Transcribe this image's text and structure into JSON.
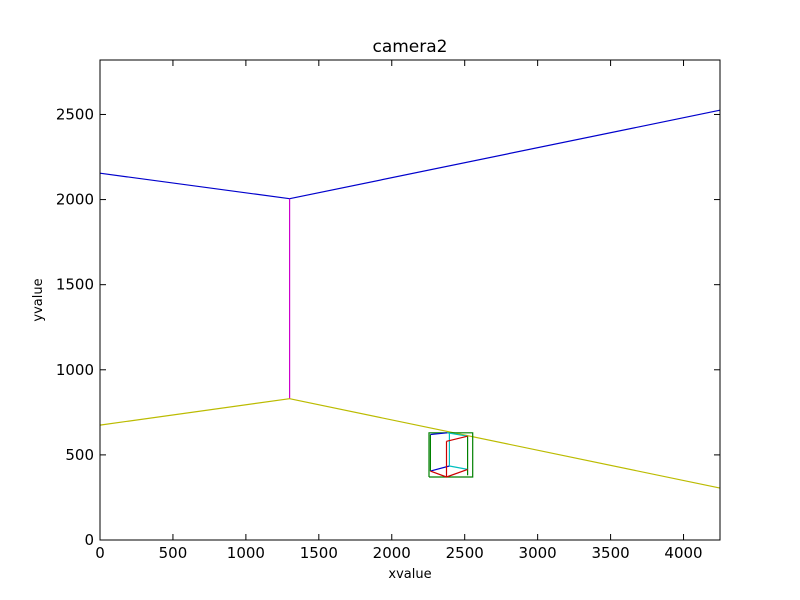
{
  "chart_data": {
    "type": "line",
    "title": "camera2",
    "xlabel": "xvalue",
    "ylabel": "yvalue",
    "xlim": [
      0,
      4250
    ],
    "ylim": [
      0,
      2820
    ],
    "xticks": [
      0,
      500,
      1000,
      1500,
      2000,
      2500,
      3000,
      3500,
      4000
    ],
    "yticks": [
      0,
      500,
      1000,
      1500,
      2000,
      2500
    ],
    "grid": false,
    "series": [
      {
        "color": "#0000cc",
        "x": [
          0,
          1300
        ],
        "y": [
          2155,
          2005
        ]
      },
      {
        "color": "#0000cc",
        "x": [
          1300,
          4250
        ],
        "y": [
          2005,
          2525
        ]
      },
      {
        "color": "#cc00cc",
        "x": [
          1300,
          1300
        ],
        "y": [
          2005,
          830
        ]
      },
      {
        "color": "#bbbb00",
        "x": [
          0,
          1300
        ],
        "y": [
          675,
          830
        ]
      },
      {
        "color": "#bbbb00",
        "x": [
          1300,
          4250
        ],
        "y": [
          830,
          305
        ]
      },
      {
        "color": "#008000",
        "x": [
          2255,
          2555,
          2555,
          2255,
          2255
        ],
        "y": [
          370,
          370,
          630,
          630,
          370
        ]
      },
      {
        "color": "#008000",
        "x": [
          2265,
          2265
        ],
        "y": [
          405,
          620
        ]
      },
      {
        "color": "#008000",
        "x": [
          2520,
          2520
        ],
        "y": [
          380,
          610
        ]
      },
      {
        "color": "#0000cc",
        "x": [
          2265,
          2395
        ],
        "y": [
          405,
          435
        ]
      },
      {
        "color": "#0000cc",
        "x": [
          2265,
          2380
        ],
        "y": [
          620,
          630
        ]
      },
      {
        "color": "#00bfbf",
        "x": [
          2395,
          2395
        ],
        "y": [
          435,
          630
        ]
      },
      {
        "color": "#00bfbf",
        "x": [
          2395,
          2520
        ],
        "y": [
          435,
          415
        ]
      },
      {
        "color": "#00bfbf",
        "x": [
          2380,
          2520
        ],
        "y": [
          630,
          610
        ]
      },
      {
        "color": "#cc0000",
        "x": [
          2265,
          2375
        ],
        "y": [
          405,
          370
        ]
      },
      {
        "color": "#cc0000",
        "x": [
          2375,
          2520
        ],
        "y": [
          370,
          415
        ]
      },
      {
        "color": "#cc0000",
        "x": [
          2375,
          2375
        ],
        "y": [
          370,
          580
        ]
      },
      {
        "color": "#cc0000",
        "x": [
          2375,
          2520
        ],
        "y": [
          580,
          610
        ]
      }
    ]
  }
}
